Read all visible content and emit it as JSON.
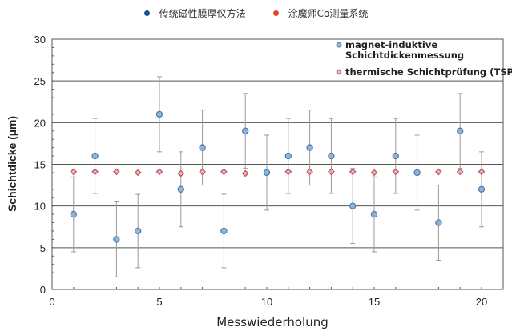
{
  "top_legend": [
    {
      "label": "传统磁性膜厚仪方法",
      "color": "#1f4e9c"
    },
    {
      "label": "涂魔师Co测量系统",
      "color": "#e8402a"
    }
  ],
  "chart_data": {
    "type": "scatter",
    "xlabel": "Messwiederholung",
    "ylabel": "Schichtdicke (µm)",
    "xlim": [
      0,
      21
    ],
    "ylim": [
      0,
      30
    ],
    "xticks": [
      0,
      5,
      10,
      15,
      20
    ],
    "yticks": [
      0,
      5,
      10,
      15,
      20,
      25,
      30
    ],
    "grid": "horizontal",
    "legend_placement": "top-right",
    "series": [
      {
        "name": "magnet-induktive Schichtdickenmessung",
        "legend_lines": [
          "magnet-induktive",
          "Schichtdickenmessung"
        ],
        "marker": "circle",
        "color": "#6f9cc4",
        "x": [
          1,
          2,
          3,
          4,
          5,
          6,
          7,
          8,
          9,
          10,
          11,
          12,
          13,
          14,
          15,
          16,
          17,
          18,
          19,
          20
        ],
        "y": [
          9,
          16,
          6,
          7,
          21,
          12,
          17,
          7,
          19,
          14,
          16,
          17,
          16,
          10,
          9,
          16,
          14,
          8,
          19,
          12
        ],
        "error": [
          4.5,
          4.5,
          4.5,
          4.4,
          4.5,
          4.5,
          4.5,
          4.4,
          4.5,
          4.5,
          4.5,
          4.5,
          4.5,
          4.5,
          4.5,
          4.5,
          4.5,
          4.5,
          4.5,
          4.5
        ]
      },
      {
        "name": "thermische Schichtprüfung (TSP)",
        "legend_lines": [
          "thermische Schichtprüfung (TSP)"
        ],
        "marker": "diamond",
        "color": "#c0505a",
        "x": [
          1,
          2,
          3,
          4,
          5,
          6,
          7,
          8,
          9,
          10,
          11,
          12,
          13,
          14,
          15,
          16,
          17,
          18,
          19,
          20
        ],
        "y": [
          14.1,
          14.1,
          14.1,
          14.0,
          14.1,
          13.9,
          14.1,
          14.1,
          13.9,
          14.0,
          14.1,
          14.1,
          14.1,
          14.1,
          14.0,
          14.1,
          14.0,
          14.1,
          14.1,
          14.1
        ]
      }
    ]
  }
}
